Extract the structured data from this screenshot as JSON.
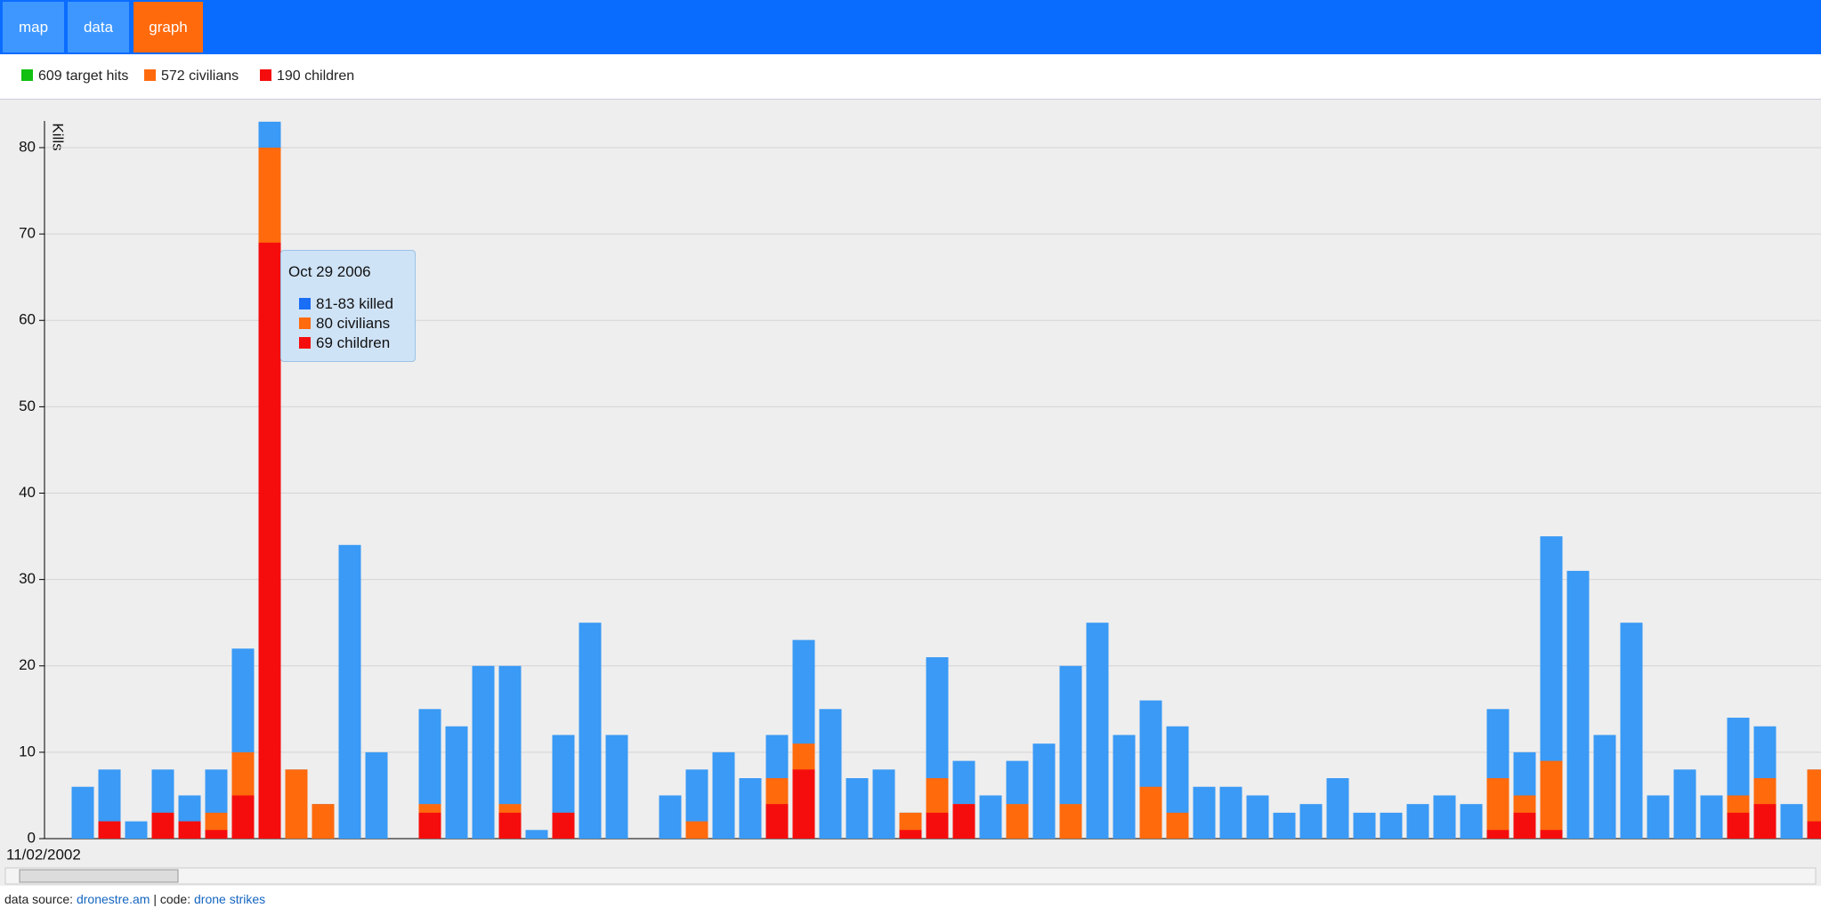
{
  "nav": [
    "map",
    "data",
    "graph"
  ],
  "legend": [
    {
      "label": "609 target hits",
      "color": "#11c011"
    },
    {
      "label": "572 civilians",
      "color": "#ff6a0d"
    },
    {
      "label": "190 children",
      "color": "#f50d0d"
    }
  ],
  "chart_data": {
    "type": "bar",
    "y_label": "Kills",
    "categories": [
      "11/02/2002",
      null,
      null,
      null,
      null,
      null,
      null,
      null,
      null,
      null,
      null,
      null,
      null,
      null,
      null,
      null,
      null,
      null,
      null,
      null,
      null,
      null,
      null,
      null,
      null,
      null,
      null,
      null,
      null,
      null,
      null,
      null,
      null,
      null,
      null,
      null,
      null,
      null,
      null,
      null,
      null,
      null,
      null,
      null,
      null,
      null,
      null,
      null,
      null,
      null,
      null,
      null,
      null,
      null,
      null,
      null,
      null,
      null,
      null,
      null,
      null,
      null,
      null,
      null,
      null,
      null
    ],
    "series": [
      {
        "color": "#3a9af5",
        "values": [
          6,
          8,
          2,
          8,
          5,
          8,
          22,
          83,
          8,
          4,
          34,
          10,
          null,
          15,
          13,
          20,
          20,
          1,
          12,
          25,
          12,
          null,
          5,
          8,
          10,
          7,
          12,
          23,
          15,
          7,
          8,
          3,
          21,
          9,
          5,
          9,
          11,
          20,
          25,
          12,
          16,
          13,
          6,
          6,
          5,
          3,
          4,
          7,
          3,
          3,
          4,
          5,
          4,
          15,
          10,
          35,
          31,
          12,
          25,
          5,
          8,
          5,
          14,
          13,
          4,
          8
        ]
      },
      {
        "color": "#ff6a0d",
        "values": [
          0,
          2,
          0,
          3,
          2,
          3,
          10,
          80,
          8,
          4,
          0,
          0,
          null,
          4,
          0,
          0,
          4,
          0,
          3,
          0,
          0,
          null,
          0,
          2,
          0,
          0,
          7,
          11,
          0,
          0,
          0,
          3,
          7,
          4,
          0,
          4,
          0,
          4,
          0,
          0,
          6,
          3,
          0,
          0,
          0,
          0,
          0,
          0,
          0,
          0,
          0,
          0,
          0,
          7,
          5,
          9,
          0,
          0,
          0,
          0,
          0,
          0,
          5,
          7,
          0,
          8
        ]
      },
      {
        "color": "#f50d0d",
        "values": [
          0,
          2,
          0,
          3,
          2,
          1,
          5,
          69,
          0,
          0,
          0,
          0,
          null,
          3,
          0,
          0,
          3,
          0,
          3,
          0,
          0,
          null,
          0,
          0,
          0,
          0,
          4,
          8,
          0,
          0,
          0,
          1,
          3,
          4,
          0,
          0,
          0,
          0,
          0,
          0,
          0,
          0,
          0,
          0,
          0,
          0,
          0,
          0,
          0,
          0,
          0,
          0,
          0,
          1,
          3,
          1,
          0,
          0,
          0,
          0,
          0,
          0,
          3,
          4,
          0,
          2
        ]
      }
    ],
    "ylim": [
      0,
      83
    ],
    "yticks": [
      0,
      10,
      20,
      30,
      40,
      50,
      60,
      70,
      80
    ],
    "grid": true
  },
  "tooltip": {
    "title": "Oct 29 2006",
    "items": [
      {
        "label": "81-83 killed",
        "color": "#1a6ef5"
      },
      {
        "label": "80 civilians",
        "color": "#ff6a0d"
      },
      {
        "label": "69 children",
        "color": "#f50d0d"
      }
    ]
  },
  "footer": {
    "prefix": "data source:",
    "source": "dronestre.am",
    "sep": "| code:",
    "code": "drone strikes"
  }
}
